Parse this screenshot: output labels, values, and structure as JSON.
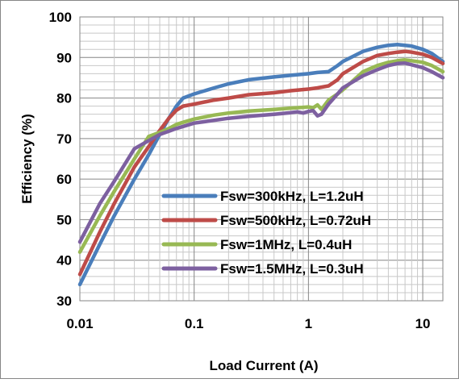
{
  "chart_data": {
    "type": "line",
    "title": "",
    "xlabel": "Load Current (A)",
    "ylabel": "Efficiency  (%)",
    "x_scale": "log",
    "xlim": [
      0.01,
      15
    ],
    "ylim": [
      30,
      100
    ],
    "x_ticks": [
      {
        "value": 0.01,
        "label": "0.01"
      },
      {
        "value": 0.1,
        "label": "0.1"
      },
      {
        "value": 1,
        "label": "1"
      },
      {
        "value": 10,
        "label": "10"
      }
    ],
    "y_ticks": [
      30,
      40,
      50,
      60,
      70,
      80,
      90,
      100
    ],
    "grid": true,
    "legend_position": "lower-right",
    "series": [
      {
        "name": "Fsw=300kHz, L=1.2uH",
        "color": "#4a7ebb",
        "x": [
          0.01,
          0.015,
          0.02,
          0.03,
          0.04,
          0.05,
          0.06,
          0.07,
          0.08,
          0.1,
          0.15,
          0.2,
          0.3,
          0.5,
          0.7,
          1,
          1.2,
          1.5,
          1.8,
          2,
          3,
          4,
          5,
          6,
          7,
          8,
          10,
          12,
          15
        ],
        "y": [
          34,
          44,
          51,
          60,
          66,
          71,
          75,
          78,
          80,
          81,
          82.5,
          83.5,
          84.5,
          85.2,
          85.6,
          86,
          86.3,
          86.5,
          88,
          89,
          91.5,
          92.5,
          93,
          93.2,
          93,
          92.8,
          92,
          91,
          89
        ]
      },
      {
        "name": "Fsw=500kHz, L=0.72uH",
        "color": "#be4b48",
        "x": [
          0.01,
          0.015,
          0.02,
          0.03,
          0.04,
          0.05,
          0.06,
          0.07,
          0.08,
          0.1,
          0.15,
          0.2,
          0.3,
          0.5,
          0.7,
          1,
          1.2,
          1.5,
          1.8,
          2,
          3,
          4,
          5,
          6,
          7,
          8,
          10,
          12,
          15
        ],
        "y": [
          36.5,
          47,
          54,
          63,
          68,
          72,
          75,
          77,
          78,
          78.5,
          79.5,
          80,
          80.8,
          81.3,
          81.8,
          82.2,
          82.5,
          83,
          84.5,
          86,
          89,
          90.5,
          91,
          91.3,
          91.5,
          91.3,
          90.8,
          90,
          88.5
        ]
      },
      {
        "name": "Fsw=1MHz, L=0.4uH",
        "color": "#98b954",
        "x": [
          0.01,
          0.015,
          0.02,
          0.03,
          0.04,
          0.05,
          0.06,
          0.07,
          0.08,
          0.1,
          0.15,
          0.2,
          0.3,
          0.5,
          0.7,
          0.9,
          1,
          1.1,
          1.2,
          1.3,
          1.5,
          1.8,
          2,
          3,
          4,
          5,
          6,
          7,
          8,
          10,
          12,
          15
        ],
        "y": [
          42,
          51,
          57,
          65,
          70.5,
          71.5,
          72.5,
          73.5,
          74,
          74.8,
          75.8,
          76.3,
          76.8,
          77.2,
          77.5,
          77.7,
          77.8,
          77.6,
          78.3,
          77.2,
          79.5,
          81,
          82,
          86.5,
          88,
          88.8,
          89.2,
          89.4,
          89.2,
          88.8,
          88,
          86.5
        ]
      },
      {
        "name": "Fsw=1.5MHz, L=0.3uH",
        "color": "#7d60a0",
        "x": [
          0.01,
          0.015,
          0.02,
          0.03,
          0.04,
          0.05,
          0.06,
          0.07,
          0.08,
          0.1,
          0.15,
          0.2,
          0.3,
          0.5,
          0.7,
          0.8,
          0.9,
          1,
          1.1,
          1.2,
          1.3,
          1.5,
          1.8,
          2,
          3,
          4,
          5,
          6,
          7,
          8,
          10,
          12,
          15
        ],
        "y": [
          44.5,
          54,
          59.5,
          67.5,
          69.5,
          71,
          71.8,
          72.5,
          73,
          73.8,
          74.5,
          75,
          75.5,
          76,
          76.4,
          76.6,
          76.3,
          76.7,
          76.9,
          75.6,
          76,
          78.5,
          81,
          82.5,
          85.5,
          87,
          88,
          88.5,
          88.6,
          88.2,
          87.5,
          86.5,
          85
        ]
      }
    ]
  }
}
